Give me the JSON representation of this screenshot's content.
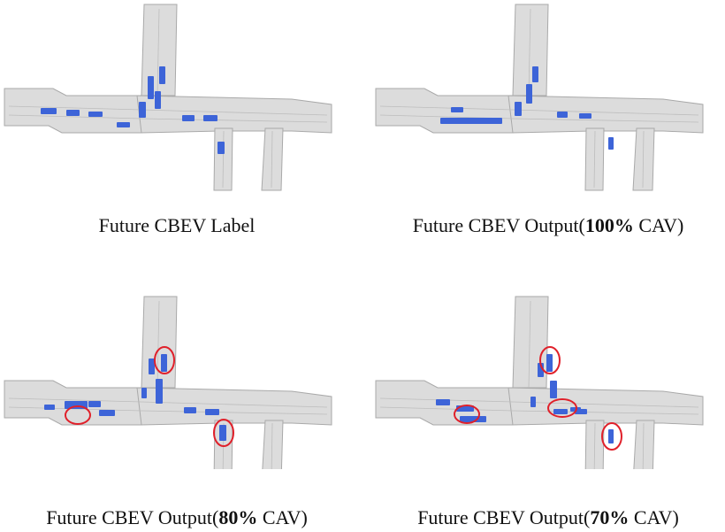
{
  "panels": [
    {
      "id": "label",
      "caption": {
        "prefix": "Future CBEV Label",
        "bold": "",
        "suffix": ""
      },
      "vehicles": [
        [
          180,
          75,
          7,
          20
        ],
        [
          167,
          86,
          7,
          26
        ],
        [
          157,
          115,
          8,
          18
        ],
        [
          175,
          103,
          7,
          20
        ],
        [
          46,
          122,
          18,
          7
        ],
        [
          75,
          124,
          15,
          7
        ],
        [
          100,
          126,
          16,
          6
        ],
        [
          132,
          138,
          15,
          6
        ],
        [
          206,
          130,
          14,
          7
        ],
        [
          230,
          130,
          16,
          7
        ],
        [
          246,
          160,
          8,
          14
        ]
      ],
      "highlights": []
    },
    {
      "id": "out100",
      "caption": {
        "prefix": "Future CBEV Output(",
        "bold": "100%",
        "suffix": " CAV)"
      },
      "vehicles": [
        [
          182,
          75,
          7,
          18
        ],
        [
          175,
          95,
          7,
          22
        ],
        [
          162,
          115,
          8,
          16
        ],
        [
          90,
          121,
          14,
          6
        ],
        [
          78,
          133,
          70,
          7
        ],
        [
          210,
          126,
          12,
          7
        ],
        [
          235,
          128,
          14,
          6
        ],
        [
          268,
          155,
          6,
          14
        ]
      ],
      "highlights": []
    },
    {
      "id": "out80",
      "caption": {
        "prefix": "Future CBEV Output(",
        "bold": "80%",
        "suffix": " CAV)"
      },
      "vehicles": [
        [
          182,
          100,
          7,
          20
        ],
        [
          168,
          105,
          7,
          18
        ],
        [
          176,
          128,
          8,
          28
        ],
        [
          160,
          138,
          6,
          12
        ],
        [
          73,
          153,
          26,
          9
        ],
        [
          100,
          153,
          14,
          7
        ],
        [
          112,
          163,
          18,
          7
        ],
        [
          208,
          160,
          14,
          7
        ],
        [
          232,
          162,
          16,
          7
        ],
        [
          248,
          180,
          8,
          18
        ],
        [
          50,
          157,
          12,
          6
        ]
      ],
      "highlights": [
        [
          186,
          107,
          11,
          15
        ],
        [
          88,
          169,
          14,
          10
        ],
        [
          253,
          189,
          11,
          15
        ]
      ]
    },
    {
      "id": "out70",
      "caption": {
        "prefix": "Future CBEV Output(",
        "bold": "70%",
        "suffix": " CAV)"
      },
      "vehicles": [
        [
          198,
          100,
          7,
          20
        ],
        [
          188,
          110,
          7,
          16
        ],
        [
          202,
          130,
          8,
          20
        ],
        [
          180,
          148,
          6,
          12
        ],
        [
          73,
          151,
          16,
          7
        ],
        [
          96,
          158,
          20,
          7
        ],
        [
          100,
          170,
          30,
          7
        ],
        [
          206,
          162,
          16,
          6
        ],
        [
          230,
          162,
          14,
          6
        ],
        [
          268,
          185,
          6,
          16
        ],
        [
          225,
          160,
          12,
          5
        ]
      ],
      "highlights": [
        [
          202,
          107,
          11,
          15
        ],
        [
          108,
          168,
          14,
          10
        ],
        [
          216,
          161,
          16,
          10
        ],
        [
          272,
          193,
          11,
          15
        ]
      ]
    }
  ],
  "colors": {
    "road": "#dcdcdc",
    "road_edge": "#a9a9a9",
    "vehicle": "#3d64d8",
    "highlight": "#e0202a"
  }
}
